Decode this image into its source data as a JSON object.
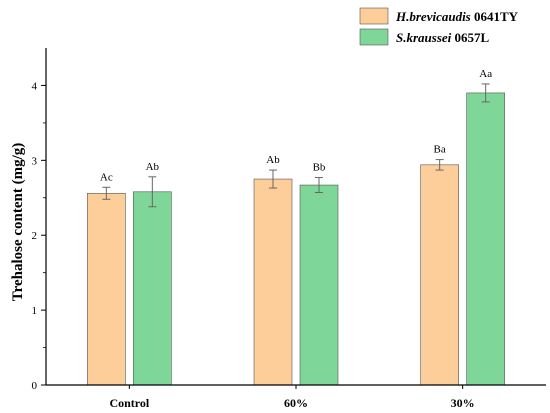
{
  "chart_data": {
    "type": "bar",
    "categories": [
      "Control",
      "60%",
      "30%"
    ],
    "series": [
      {
        "name_italic": "H.brevicaudis",
        "name_suffix": " 0641TY",
        "color": "#FDCD9A",
        "values": [
          2.56,
          2.75,
          2.94
        ],
        "errors": [
          0.08,
          0.12,
          0.07
        ],
        "labels": [
          "Ac",
          "Ab",
          "Ba"
        ]
      },
      {
        "name_italic": "S.kraussei",
        "name_suffix": " 0657L",
        "color": "#7ED698",
        "values": [
          2.58,
          2.67,
          3.9
        ],
        "errors": [
          0.2,
          0.1,
          0.12
        ],
        "labels": [
          "Ab",
          "Bb",
          "Aa"
        ]
      }
    ],
    "ylabel": "Trehalose content (mg/g)",
    "xlabel": "",
    "ylim": [
      0,
      4.5
    ],
    "yticks": [
      0,
      1,
      2,
      3,
      4
    ],
    "grid": false,
    "legend_position": "top-right"
  }
}
